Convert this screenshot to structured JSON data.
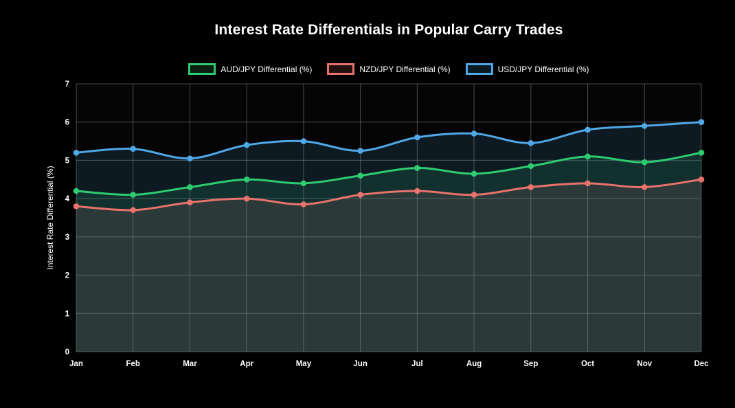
{
  "page": {
    "background": "#000000"
  },
  "chart_data": {
    "type": "line",
    "title": "Interest Rate Differentials in Popular Carry Trades",
    "xlabel": "",
    "ylabel": "Interest Rate Differential (%)",
    "categories": [
      "Jan",
      "Feb",
      "Mar",
      "Apr",
      "May",
      "Jun",
      "Jul",
      "Aug",
      "Sep",
      "Oct",
      "Nov",
      "Dec"
    ],
    "ylim": [
      0,
      7
    ],
    "y_ticks": [
      0,
      1,
      2,
      3,
      4,
      5,
      6,
      7
    ],
    "grid": true,
    "legend_position": "top",
    "style": {
      "area_fill": true,
      "point_markers": true,
      "grid_color": "rgba(255,255,255,0.28)"
    },
    "series": [
      {
        "name": "AUD/JPY Differential (%)",
        "color": "#2ecc71",
        "values": [
          4.2,
          4.1,
          4.3,
          4.5,
          4.4,
          4.6,
          4.8,
          4.65,
          4.85,
          5.1,
          4.95,
          5.2
        ]
      },
      {
        "name": "NZD/JPY Differential (%)",
        "color": "#e8736c",
        "values": [
          3.8,
          3.7,
          3.9,
          4.0,
          3.85,
          4.1,
          4.2,
          4.1,
          4.3,
          4.4,
          4.3,
          4.5
        ]
      },
      {
        "name": "USD/JPY Differential (%)",
        "color": "#4fa8e8",
        "values": [
          5.2,
          5.3,
          5.05,
          5.4,
          5.5,
          5.25,
          5.6,
          5.7,
          5.45,
          5.8,
          5.9,
          6.0
        ]
      }
    ]
  }
}
